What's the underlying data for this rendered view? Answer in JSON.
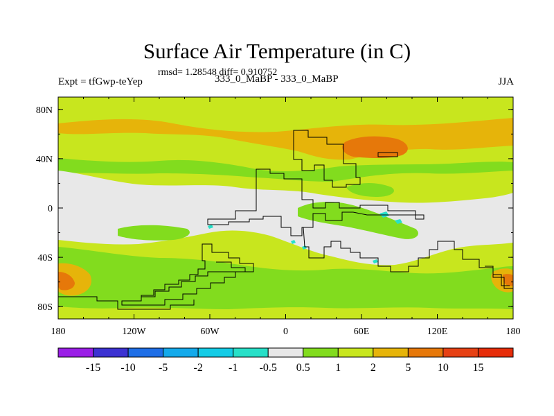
{
  "chart_data": {
    "type": "heatmap",
    "title": "Surface Air Temperature (in C)",
    "stats_text": "rmsd= 1.28548 diff= 0.910752",
    "left_label": "Expt = tfGwp-teYep",
    "center_label": "333_0_MaBP - 333_0_MaBP",
    "right_label": "JJA",
    "x_ticks": [
      "180",
      "120W",
      "60W",
      "0",
      "60E",
      "120E",
      "180"
    ],
    "y_ticks": [
      "80N",
      "40N",
      "0",
      "40S",
      "80S"
    ],
    "xlim": [
      -180,
      180
    ],
    "ylim": [
      -90,
      90
    ],
    "colorbar": {
      "labels": [
        "-15",
        "-10",
        "-5",
        "-2",
        "-1",
        "-0.5",
        "0.5",
        "1",
        "2",
        "5",
        "10",
        "15"
      ],
      "colors": [
        "#9a1ee6",
        "#3c32d2",
        "#1e6ee6",
        "#14aaeb",
        "#14cce6",
        "#28e0c8",
        "#e8e8e8",
        "#82dc1e",
        "#c8e61e",
        "#e6b40a",
        "#e6780a",
        "#e64114",
        "#e62d0a"
      ]
    },
    "colors": {
      "land_neutral": "#e8e8e8",
      "green": "#82dc1e",
      "yellow_green": "#c8e61e",
      "orange": "#e6b40a",
      "dark_orange": "#e6780a",
      "cyan": "#28e0c8"
    }
  }
}
